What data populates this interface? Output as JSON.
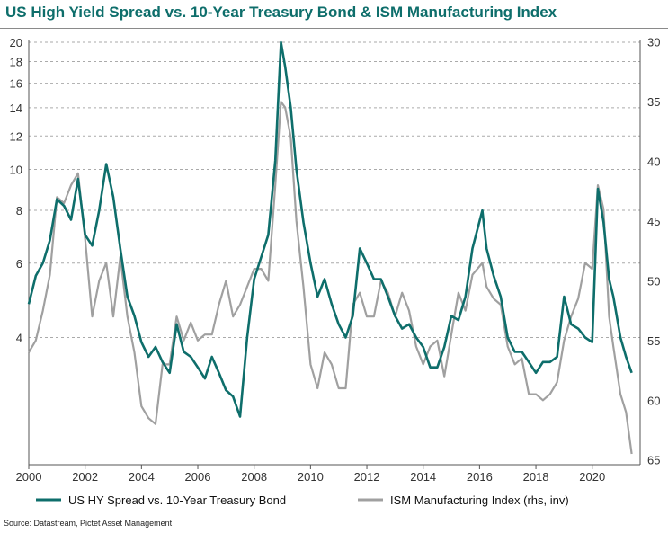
{
  "title": "US High Yield Spread vs. 10-Year Treasury Bond & ISM Manufacturing Index",
  "source": "Source: Datastream, Pictet Asset Management",
  "colors": {
    "hy": "#0e6e6b",
    "ism": "#a0a0a0",
    "title": "#0e6e6b",
    "grid": "#aaaaaa"
  },
  "chart_data": {
    "type": "line",
    "title": "US High Yield Spread vs. 10-Year Treasury Bond & ISM Manufacturing Index",
    "xlabel": "",
    "ylabel": "",
    "xlim": [
      2000,
      2021.7
    ],
    "x_ticks": [
      {
        "value": 2000,
        "label": "2000"
      },
      {
        "value": 2002,
        "label": "2002"
      },
      {
        "value": 2004,
        "label": "2004"
      },
      {
        "value": 2006,
        "label": "2006"
      },
      {
        "value": 2008,
        "label": "2008"
      },
      {
        "value": 2010,
        "label": "2010"
      },
      {
        "value": 2012,
        "label": "2012"
      },
      {
        "value": 2014,
        "label": "2014"
      },
      {
        "value": 2016,
        "label": "2016"
      },
      {
        "value": 2018,
        "label": "2018"
      },
      {
        "value": 2020,
        "label": "2020"
      }
    ],
    "y_left": {
      "scale": "log",
      "range": [
        2.0,
        20.3
      ],
      "ticks": [
        {
          "value": 20,
          "label": "20"
        },
        {
          "value": 18,
          "label": "18"
        },
        {
          "value": 16,
          "label": "16"
        },
        {
          "value": 14,
          "label": "14"
        },
        {
          "value": 12,
          "label": "12"
        },
        {
          "value": 10,
          "label": "10"
        },
        {
          "value": 8,
          "label": "8"
        },
        {
          "value": 6,
          "label": "6"
        },
        {
          "value": 4,
          "label": "4"
        }
      ]
    },
    "y_right": {
      "scale": "linear",
      "inverted": true,
      "range": [
        29.8,
        65.4
      ],
      "ticks": [
        {
          "value": 30,
          "label": "30"
        },
        {
          "value": 35,
          "label": "35"
        },
        {
          "value": 40,
          "label": "40"
        },
        {
          "value": 45,
          "label": "45"
        },
        {
          "value": 50,
          "label": "50"
        },
        {
          "value": 55,
          "label": "55"
        },
        {
          "value": 60,
          "label": "60"
        },
        {
          "value": 65,
          "label": "65"
        }
      ]
    },
    "grid": "horizontal dashed",
    "legend": "bottom",
    "series": [
      {
        "name": "US HY Spread vs. 10-Year Treasury Bond",
        "axis": "left",
        "points": [
          [
            2000.0,
            4.8
          ],
          [
            2000.25,
            5.6
          ],
          [
            2000.5,
            6.0
          ],
          [
            2000.75,
            6.8
          ],
          [
            2001.0,
            8.5
          ],
          [
            2001.25,
            8.2
          ],
          [
            2001.5,
            7.6
          ],
          [
            2001.75,
            9.5
          ],
          [
            2002.0,
            7.0
          ],
          [
            2002.25,
            6.6
          ],
          [
            2002.5,
            8.0
          ],
          [
            2002.75,
            10.3
          ],
          [
            2003.0,
            8.6
          ],
          [
            2003.25,
            6.5
          ],
          [
            2003.5,
            5.0
          ],
          [
            2003.75,
            4.5
          ],
          [
            2004.0,
            3.9
          ],
          [
            2004.25,
            3.6
          ],
          [
            2004.5,
            3.8
          ],
          [
            2004.75,
            3.5
          ],
          [
            2005.0,
            3.3
          ],
          [
            2005.25,
            4.3
          ],
          [
            2005.5,
            3.7
          ],
          [
            2005.75,
            3.6
          ],
          [
            2006.0,
            3.4
          ],
          [
            2006.25,
            3.2
          ],
          [
            2006.5,
            3.6
          ],
          [
            2006.75,
            3.3
          ],
          [
            2007.0,
            3.0
          ],
          [
            2007.25,
            2.9
          ],
          [
            2007.5,
            2.6
          ],
          [
            2007.75,
            4.0
          ],
          [
            2008.0,
            5.5
          ],
          [
            2008.25,
            6.2
          ],
          [
            2008.5,
            7.0
          ],
          [
            2008.75,
            10.5
          ],
          [
            2008.95,
            20.0
          ],
          [
            2009.1,
            17.5
          ],
          [
            2009.3,
            14.0
          ],
          [
            2009.5,
            10.0
          ],
          [
            2009.75,
            7.5
          ],
          [
            2010.0,
            6.0
          ],
          [
            2010.25,
            5.0
          ],
          [
            2010.5,
            5.5
          ],
          [
            2010.75,
            4.8
          ],
          [
            2011.0,
            4.3
          ],
          [
            2011.25,
            4.0
          ],
          [
            2011.5,
            4.5
          ],
          [
            2011.75,
            6.5
          ],
          [
            2012.0,
            6.0
          ],
          [
            2012.25,
            5.5
          ],
          [
            2012.5,
            5.5
          ],
          [
            2012.75,
            5.0
          ],
          [
            2013.0,
            4.5
          ],
          [
            2013.25,
            4.2
          ],
          [
            2013.5,
            4.3
          ],
          [
            2013.75,
            4.0
          ],
          [
            2014.0,
            3.8
          ],
          [
            2014.25,
            3.4
          ],
          [
            2014.5,
            3.4
          ],
          [
            2014.75,
            3.8
          ],
          [
            2015.0,
            4.5
          ],
          [
            2015.25,
            4.4
          ],
          [
            2015.5,
            5.0
          ],
          [
            2015.75,
            6.5
          ],
          [
            2016.1,
            8.0
          ],
          [
            2016.25,
            6.5
          ],
          [
            2016.5,
            5.6
          ],
          [
            2016.75,
            5.0
          ],
          [
            2017.0,
            4.0
          ],
          [
            2017.25,
            3.7
          ],
          [
            2017.5,
            3.7
          ],
          [
            2017.75,
            3.5
          ],
          [
            2018.0,
            3.3
          ],
          [
            2018.25,
            3.5
          ],
          [
            2018.5,
            3.5
          ],
          [
            2018.75,
            3.6
          ],
          [
            2019.0,
            5.0
          ],
          [
            2019.25,
            4.3
          ],
          [
            2019.5,
            4.2
          ],
          [
            2019.75,
            4.0
          ],
          [
            2020.0,
            3.9
          ],
          [
            2020.2,
            9.0
          ],
          [
            2020.4,
            7.5
          ],
          [
            2020.6,
            5.5
          ],
          [
            2020.75,
            5.0
          ],
          [
            2021.0,
            4.0
          ],
          [
            2021.2,
            3.6
          ],
          [
            2021.4,
            3.3
          ]
        ]
      },
      {
        "name": "ISM Manufacturing Index (rhs, inv)",
        "axis": "right",
        "points": [
          [
            2000.0,
            56.0
          ],
          [
            2000.25,
            55.0
          ],
          [
            2000.5,
            52.5
          ],
          [
            2000.75,
            49.5
          ],
          [
            2001.0,
            43.0
          ],
          [
            2001.25,
            43.5
          ],
          [
            2001.5,
            42.0
          ],
          [
            2001.75,
            41.0
          ],
          [
            2002.0,
            46.5
          ],
          [
            2002.25,
            53.0
          ],
          [
            2002.5,
            50.0
          ],
          [
            2002.75,
            48.5
          ],
          [
            2003.0,
            53.0
          ],
          [
            2003.25,
            48.0
          ],
          [
            2003.5,
            53.0
          ],
          [
            2003.75,
            56.0
          ],
          [
            2004.0,
            60.5
          ],
          [
            2004.25,
            61.5
          ],
          [
            2004.5,
            62.0
          ],
          [
            2004.75,
            57.0
          ],
          [
            2005.0,
            57.0
          ],
          [
            2005.25,
            53.0
          ],
          [
            2005.5,
            55.0
          ],
          [
            2005.75,
            53.5
          ],
          [
            2006.0,
            55.0
          ],
          [
            2006.25,
            54.5
          ],
          [
            2006.5,
            54.5
          ],
          [
            2006.75,
            52.0
          ],
          [
            2007.0,
            50.0
          ],
          [
            2007.25,
            53.0
          ],
          [
            2007.5,
            52.0
          ],
          [
            2007.75,
            50.5
          ],
          [
            2008.0,
            49.0
          ],
          [
            2008.25,
            49.0
          ],
          [
            2008.5,
            50.0
          ],
          [
            2008.75,
            42.0
          ],
          [
            2008.95,
            35.0
          ],
          [
            2009.1,
            35.5
          ],
          [
            2009.3,
            38.0
          ],
          [
            2009.5,
            45.0
          ],
          [
            2009.75,
            50.5
          ],
          [
            2010.0,
            57.0
          ],
          [
            2010.25,
            59.0
          ],
          [
            2010.5,
            56.0
          ],
          [
            2010.75,
            57.0
          ],
          [
            2011.0,
            59.0
          ],
          [
            2011.25,
            59.0
          ],
          [
            2011.5,
            52.0
          ],
          [
            2011.75,
            51.0
          ],
          [
            2012.0,
            53.0
          ],
          [
            2012.25,
            53.0
          ],
          [
            2012.5,
            50.0
          ],
          [
            2012.75,
            51.0
          ],
          [
            2013.0,
            53.0
          ],
          [
            2013.25,
            51.0
          ],
          [
            2013.5,
            52.5
          ],
          [
            2013.75,
            55.5
          ],
          [
            2014.0,
            57.0
          ],
          [
            2014.25,
            55.5
          ],
          [
            2014.5,
            55.0
          ],
          [
            2014.75,
            58.0
          ],
          [
            2015.0,
            54.5
          ],
          [
            2015.25,
            51.0
          ],
          [
            2015.5,
            52.5
          ],
          [
            2015.75,
            49.5
          ],
          [
            2016.1,
            48.5
          ],
          [
            2016.25,
            50.5
          ],
          [
            2016.5,
            51.5
          ],
          [
            2016.75,
            52.0
          ],
          [
            2017.0,
            55.5
          ],
          [
            2017.25,
            57.0
          ],
          [
            2017.5,
            56.5
          ],
          [
            2017.75,
            59.5
          ],
          [
            2018.0,
            59.5
          ],
          [
            2018.25,
            60.0
          ],
          [
            2018.5,
            59.5
          ],
          [
            2018.75,
            58.5
          ],
          [
            2019.0,
            55.0
          ],
          [
            2019.25,
            53.0
          ],
          [
            2019.5,
            51.5
          ],
          [
            2019.75,
            48.5
          ],
          [
            2020.0,
            49.0
          ],
          [
            2020.2,
            42.0
          ],
          [
            2020.4,
            44.0
          ],
          [
            2020.6,
            53.0
          ],
          [
            2020.75,
            55.5
          ],
          [
            2021.0,
            59.5
          ],
          [
            2021.2,
            61.0
          ],
          [
            2021.4,
            64.5
          ]
        ]
      }
    ]
  }
}
